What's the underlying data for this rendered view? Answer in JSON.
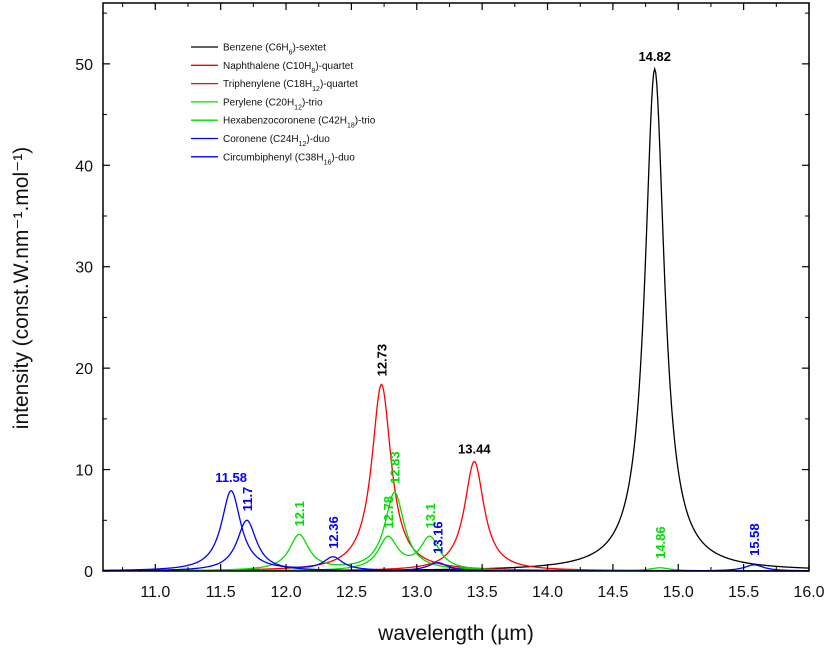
{
  "chart_data": {
    "type": "line",
    "title": "",
    "xlabel": "wavelength (µm)",
    "ylabel": "intensity (const.W.nm⁻¹.mol⁻¹)",
    "xlim": [
      10.6,
      16.0
    ],
    "ylim": [
      0,
      56
    ],
    "x_ticks": [
      "11.0",
      "11.5",
      "12.0",
      "12.5",
      "13.0",
      "13.5",
      "14.0",
      "14.5",
      "15.0",
      "15.5",
      "16.0"
    ],
    "y_ticks": [
      "0",
      "10",
      "20",
      "30",
      "40",
      "50"
    ],
    "gamma": 0.09,
    "legend_position": "top-left",
    "series": [
      {
        "name": "Benzene (C6H6)-sextet",
        "color": "#000000",
        "legend": {
          "prefix": "Benzene (C",
          "parts": [
            [
              "6",
              ""
            ],
            [
              "H",
              "6"
            ]
          ],
          "suffix": ")-sextet"
        },
        "peaks": [
          {
            "x": 14.82,
            "y": 49.5
          }
        ]
      },
      {
        "name": "Naphthalene (C10H8)-quartet",
        "color": "#ff0000",
        "legend": {
          "prefix": "Naphthalene (C",
          "parts": [
            [
              "10",
              ""
            ],
            [
              "H",
              "8"
            ]
          ],
          "suffix": ")-quartet"
        },
        "peaks": [
          {
            "x": 12.73,
            "y": 18.4
          }
        ]
      },
      {
        "name": "Triphenylene (C18H12)-quartet",
        "color": "#ff0000",
        "legend": {
          "prefix": "Triphenylene (C",
          "parts": [
            [
              "18",
              ""
            ],
            [
              "H",
              "12"
            ]
          ],
          "suffix": ")-quartet"
        },
        "peaks": [
          {
            "x": 13.44,
            "y": 10.8
          }
        ]
      },
      {
        "name": "Perylene (C20H12)-trio",
        "color": "#00dd00",
        "legend": {
          "prefix": "Perylene (C",
          "parts": [
            [
              "20",
              ""
            ],
            [
              "H",
              "12"
            ]
          ],
          "suffix": ")-trio"
        },
        "peaks": [
          {
            "x": 12.1,
            "y": 3.5
          },
          {
            "x": 12.83,
            "y": 7.7
          },
          {
            "x": 14.86,
            "y": 0.3
          }
        ]
      },
      {
        "name": "Hexabenzocoronene (C42H18)-trio",
        "color": "#00dd00",
        "legend": {
          "prefix": "Hexabenzocoronene (C",
          "parts": [
            [
              "42",
              ""
            ],
            [
              "H",
              "18"
            ]
          ],
          "suffix": ")-trio"
        },
        "peaks": [
          {
            "x": 12.78,
            "y": 3.2
          },
          {
            "x": 13.1,
            "y": 3.2
          }
        ]
      },
      {
        "name": "Coronene (C24H12)-duo",
        "color": "#0000ff",
        "legend": {
          "prefix": "Coronene (C",
          "parts": [
            [
              "24",
              ""
            ],
            [
              "H",
              "12"
            ]
          ],
          "suffix": ")-duo"
        },
        "peaks": [
          {
            "x": 11.58,
            "y": 7.9
          },
          {
            "x": 12.36,
            "y": 1.3
          }
        ]
      },
      {
        "name": "Circumbiphenyl (C38H16)-duo",
        "color": "#0000ff",
        "legend": {
          "prefix": "Circumbiphenyl (C",
          "parts": [
            [
              "38",
              ""
            ],
            [
              "H",
              "16"
            ]
          ],
          "suffix": ")-duo"
        },
        "peaks": [
          {
            "x": 11.7,
            "y": 5.0
          },
          {
            "x": 13.16,
            "y": 0.8
          },
          {
            "x": 15.58,
            "y": 0.6
          }
        ]
      }
    ],
    "peak_labels": [
      {
        "text": "14.82",
        "x": 14.82,
        "y": 49.5,
        "color": "#000000",
        "rotate": false
      },
      {
        "text": "12.73",
        "x": 12.73,
        "y": 18.4,
        "color": "#000000",
        "rotate": true
      },
      {
        "text": "13.44",
        "x": 13.44,
        "y": 10.8,
        "color": "#000000",
        "rotate": false
      },
      {
        "text": "11.58",
        "x": 11.58,
        "y": 8.0,
        "color": "#0000ff",
        "rotate": false
      },
      {
        "text": "11.7",
        "x": 11.7,
        "y": 5.1,
        "color": "#0000ff",
        "rotate": true
      },
      {
        "text": "12.1",
        "x": 12.1,
        "y": 3.6,
        "color": "#00dd00",
        "rotate": true
      },
      {
        "text": "12.36",
        "x": 12.36,
        "y": 1.4,
        "color": "#0000ff",
        "rotate": true
      },
      {
        "text": "12.78",
        "x": 12.78,
        "y": 3.4,
        "color": "#00dd00",
        "rotate": true
      },
      {
        "text": "12.83",
        "x": 12.83,
        "y": 7.8,
        "color": "#00dd00",
        "rotate": true
      },
      {
        "text": "13.1",
        "x": 13.1,
        "y": 3.4,
        "color": "#00dd00",
        "rotate": true
      },
      {
        "text": "13.16",
        "x": 13.16,
        "y": 0.9,
        "color": "#0000ff",
        "rotate": true
      },
      {
        "text": "14.86",
        "x": 14.86,
        "y": 0.4,
        "color": "#00dd00",
        "rotate": true
      },
      {
        "text": "15.58",
        "x": 15.58,
        "y": 0.7,
        "color": "#0000ff",
        "rotate": true
      }
    ]
  }
}
